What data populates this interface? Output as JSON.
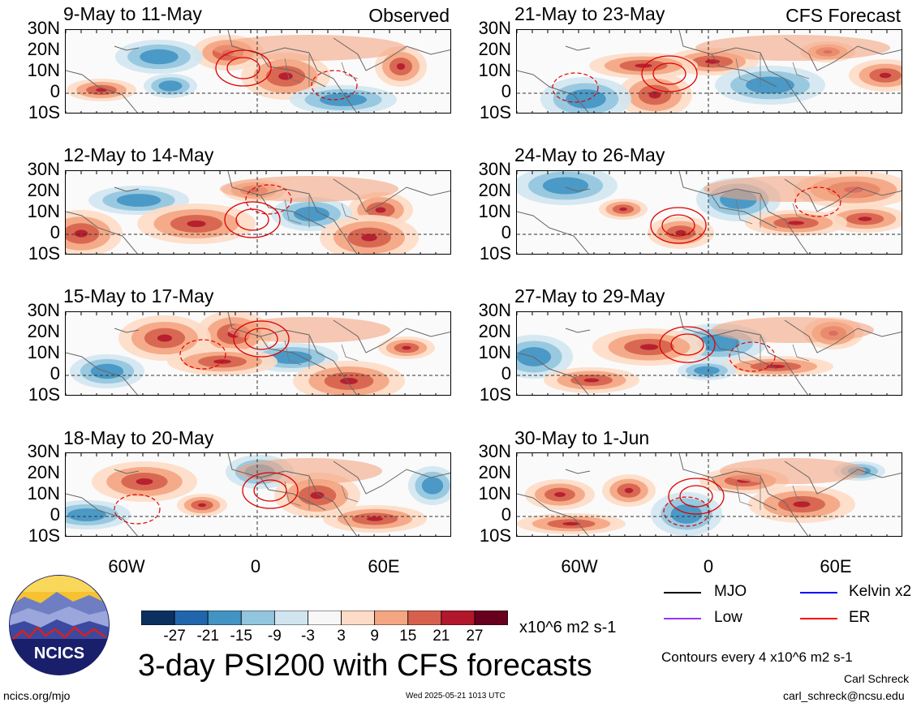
{
  "panels_left": [
    {
      "title": "9-May to 11-May",
      "corner": "Observed"
    },
    {
      "title": "12-May to 14-May",
      "corner": ""
    },
    {
      "title": "15-May to 17-May",
      "corner": ""
    },
    {
      "title": "18-May to 20-May",
      "corner": ""
    }
  ],
  "panels_right": [
    {
      "title": "21-May to 23-May",
      "corner": "CFS Forecast"
    },
    {
      "title": "24-May to 26-May",
      "corner": ""
    },
    {
      "title": "27-May to 29-May",
      "corner": ""
    },
    {
      "title": "30-May to 1-Jun",
      "corner": ""
    }
  ],
  "lat_labels": [
    "30N",
    "20N",
    "10N",
    "0",
    "10S"
  ],
  "lon_labels": [
    "60W",
    "0",
    "60E"
  ],
  "colorbar": {
    "ticks": [
      "-27",
      "-21",
      "-15",
      "-9",
      "-3",
      "3",
      "9",
      "15",
      "21",
      "27"
    ],
    "colors": [
      "#0b3060",
      "#2166ac",
      "#4393c3",
      "#92c5de",
      "#d1e5f0",
      "#f7f7f7",
      "#fddbc7",
      "#f4a582",
      "#d6604d",
      "#b2182b",
      "#67001f"
    ],
    "units": "x10^6 m2 s-1"
  },
  "legend": {
    "items": [
      {
        "label": "MJO",
        "color": "#000000"
      },
      {
        "label": "Kelvin x2",
        "color": "#0000ff"
      },
      {
        "label": "Low",
        "color": "#9933ff"
      },
      {
        "label": "ER",
        "color": "#ff0000"
      }
    ],
    "contour_note": "Contours every 4 x10^6 m2 s-1"
  },
  "title": "3-day PSI200 with CFS forecasts",
  "logo_text": "NCICS",
  "footer": {
    "left": "ncics.org/mjo",
    "center": "Wed 2025-05-21 1013 UTC",
    "author": "Carl Schreck",
    "email": "carl_schreck@ncsu.edu"
  }
}
